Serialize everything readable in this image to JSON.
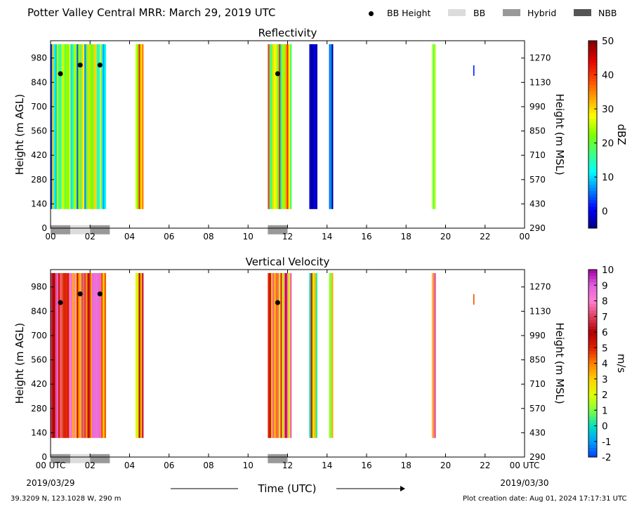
{
  "header": {
    "title": "Potter Valley Central MRR:  March 29, 2019 UTC",
    "legend": [
      {
        "label": "BB Height",
        "kind": "dot",
        "color": "#000000"
      },
      {
        "label": "BB",
        "kind": "box",
        "color": "#dcdcdc"
      },
      {
        "label": "Hybrid",
        "kind": "box",
        "color": "#999999"
      },
      {
        "label": "NBB",
        "kind": "box",
        "color": "#555555"
      }
    ]
  },
  "footer": {
    "location": "39.3209 N, 123.1028 W, 290 m",
    "created": "Plot creation date: Aug 01, 2024 17:17:31 UTC",
    "xlabel": "Time (UTC)",
    "date_start": "2019/03/29",
    "date_end": "2019/03/30"
  },
  "chart_data": [
    {
      "type": "heatmap",
      "title": "Reflectivity",
      "xlabel": "",
      "ylabel": "Height (m AGL)",
      "ylabel_right": "Height (m MSL)",
      "x_ticks": [
        "00",
        "02",
        "04",
        "06",
        "08",
        "10",
        "12",
        "14",
        "16",
        "18",
        "20",
        "22",
        "00"
      ],
      "xlim": [
        0,
        24
      ],
      "y_ticks": [
        0,
        140,
        280,
        420,
        560,
        700,
        840,
        980
      ],
      "y_right_ticks": [
        290,
        430,
        570,
        710,
        850,
        990,
        1130,
        1270
      ],
      "ylim": [
        0,
        1080
      ],
      "colorbar": {
        "label": "dBZ",
        "range": [
          -5,
          50
        ],
        "ticks": [
          0,
          10,
          20,
          30,
          40,
          50
        ],
        "colormap": [
          "#000080",
          "#0000ff",
          "#0080ff",
          "#00ffff",
          "#40ff80",
          "#80ff00",
          "#ffff00",
          "#ffa000",
          "#ff4000",
          "#e00000",
          "#800000"
        ]
      },
      "echo_periods": [
        {
          "start": 0.0,
          "end": 2.8,
          "value": 18
        },
        {
          "start": 4.3,
          "end": 4.7,
          "value": 28
        },
        {
          "start": 11.0,
          "end": 12.2,
          "value": 28
        },
        {
          "start": 13.1,
          "end": 13.5,
          "value": 2
        },
        {
          "start": 14.1,
          "end": 14.3,
          "value": 4
        },
        {
          "start": 19.3,
          "end": 19.5,
          "value": 15
        },
        {
          "start": 21.4,
          "end": 21.45,
          "value": -2
        }
      ],
      "bb_height": [
        {
          "t": 0.5,
          "h": 890
        },
        {
          "t": 1.5,
          "h": 940
        },
        {
          "t": 2.5,
          "h": 940
        },
        {
          "t": 11.5,
          "h": 890
        }
      ],
      "bb_bar": [
        {
          "start": 0.0,
          "end": 1.0,
          "kind": "Hybrid"
        },
        {
          "start": 1.0,
          "end": 2.0,
          "kind": "BB"
        },
        {
          "start": 2.0,
          "end": 3.0,
          "kind": "Hybrid"
        },
        {
          "start": 11.0,
          "end": 12.0,
          "kind": "Hybrid"
        }
      ]
    },
    {
      "type": "heatmap",
      "title": "Vertical Velocity",
      "xlabel": "Time (UTC)",
      "ylabel": "Height (m AGL)",
      "ylabel_right": "Height (m MSL)",
      "x_ticks": [
        "00 UTC",
        "02",
        "04",
        "06",
        "08",
        "10",
        "12",
        "14",
        "16",
        "18",
        "20",
        "22",
        "00 UTC"
      ],
      "xlim": [
        0,
        24
      ],
      "y_ticks": [
        0,
        140,
        280,
        420,
        560,
        700,
        840,
        980
      ],
      "y_right_ticks": [
        290,
        430,
        570,
        710,
        850,
        990,
        1130,
        1270
      ],
      "ylim": [
        0,
        1080
      ],
      "colorbar": {
        "label": "m/s",
        "range": [
          -2,
          10
        ],
        "ticks": [
          -2,
          -1,
          0,
          1,
          2,
          3,
          4,
          5,
          6,
          7,
          8,
          9,
          10
        ],
        "colormap": [
          "#0040ff",
          "#00a0ff",
          "#00e0c0",
          "#80ff40",
          "#e0ff00",
          "#ffd000",
          "#ff8000",
          "#e02000",
          "#b00000",
          "#e04060",
          "#ff80d0",
          "#e060e0",
          "#a000a0"
        ]
      },
      "echo_periods": [
        {
          "start": 0.0,
          "end": 2.8,
          "value": 6
        },
        {
          "start": 4.3,
          "end": 4.7,
          "value": 5
        },
        {
          "start": 11.0,
          "end": 12.2,
          "value": 5
        },
        {
          "start": 13.1,
          "end": 13.5,
          "value": 2
        },
        {
          "start": 14.1,
          "end": 14.3,
          "value": 3
        },
        {
          "start": 19.3,
          "end": 19.5,
          "value": 6
        },
        {
          "start": 21.4,
          "end": 21.45,
          "value": 3
        }
      ],
      "bb_height": [
        {
          "t": 0.5,
          "h": 890
        },
        {
          "t": 1.5,
          "h": 940
        },
        {
          "t": 2.5,
          "h": 940
        },
        {
          "t": 11.5,
          "h": 890
        }
      ],
      "bb_bar": [
        {
          "start": 0.0,
          "end": 1.0,
          "kind": "Hybrid"
        },
        {
          "start": 1.0,
          "end": 2.0,
          "kind": "BB"
        },
        {
          "start": 2.0,
          "end": 3.0,
          "kind": "Hybrid"
        },
        {
          "start": 11.0,
          "end": 12.0,
          "kind": "Hybrid"
        }
      ]
    }
  ]
}
